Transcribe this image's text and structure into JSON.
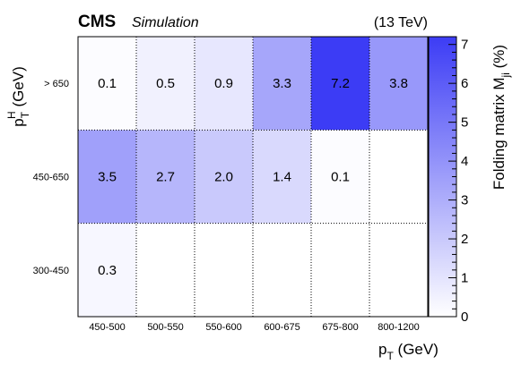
{
  "header": {
    "experiment": "CMS",
    "qualifier": "Simulation",
    "energy": "(13 TeV)"
  },
  "chart_data": {
    "type": "heatmap",
    "xlabel": "p_T (GeV)",
    "ylabel": "p_T^H (GeV)",
    "zlabel": "Folding matrix M_ji (%)",
    "x_categories": [
      "450-500",
      "500-550",
      "550-600",
      "600-675",
      "675-800",
      "800-1200"
    ],
    "y_categories": [
      "300-450",
      "450-650",
      "> 650"
    ],
    "zlim": [
      0,
      7.2
    ],
    "z_ticks": [
      0,
      1,
      2,
      3,
      4,
      5,
      6,
      7
    ],
    "cells": [
      {
        "x": "450-500",
        "y": "> 650",
        "value": 0.1,
        "label": "0.1"
      },
      {
        "x": "500-550",
        "y": "> 650",
        "value": 0.5,
        "label": "0.5"
      },
      {
        "x": "550-600",
        "y": "> 650",
        "value": 0.9,
        "label": "0.9"
      },
      {
        "x": "600-675",
        "y": "> 650",
        "value": 3.3,
        "label": "3.3"
      },
      {
        "x": "675-800",
        "y": "> 650",
        "value": 7.2,
        "label": "7.2"
      },
      {
        "x": "800-1200",
        "y": "> 650",
        "value": 3.8,
        "label": "3.8"
      },
      {
        "x": "450-500",
        "y": "450-650",
        "value": 3.5,
        "label": "3.5"
      },
      {
        "x": "500-550",
        "y": "450-650",
        "value": 2.7,
        "label": "2.7"
      },
      {
        "x": "550-600",
        "y": "450-650",
        "value": 2.0,
        "label": "2.0"
      },
      {
        "x": "600-675",
        "y": "450-650",
        "value": 1.4,
        "label": "1.4"
      },
      {
        "x": "675-800",
        "y": "450-650",
        "value": 0.1,
        "label": "0.1"
      },
      {
        "x": "450-500",
        "y": "300-450",
        "value": 0.3,
        "label": "0.3"
      }
    ],
    "colors": {
      "low": "#ffffff",
      "high": "#3c3cf5"
    }
  }
}
